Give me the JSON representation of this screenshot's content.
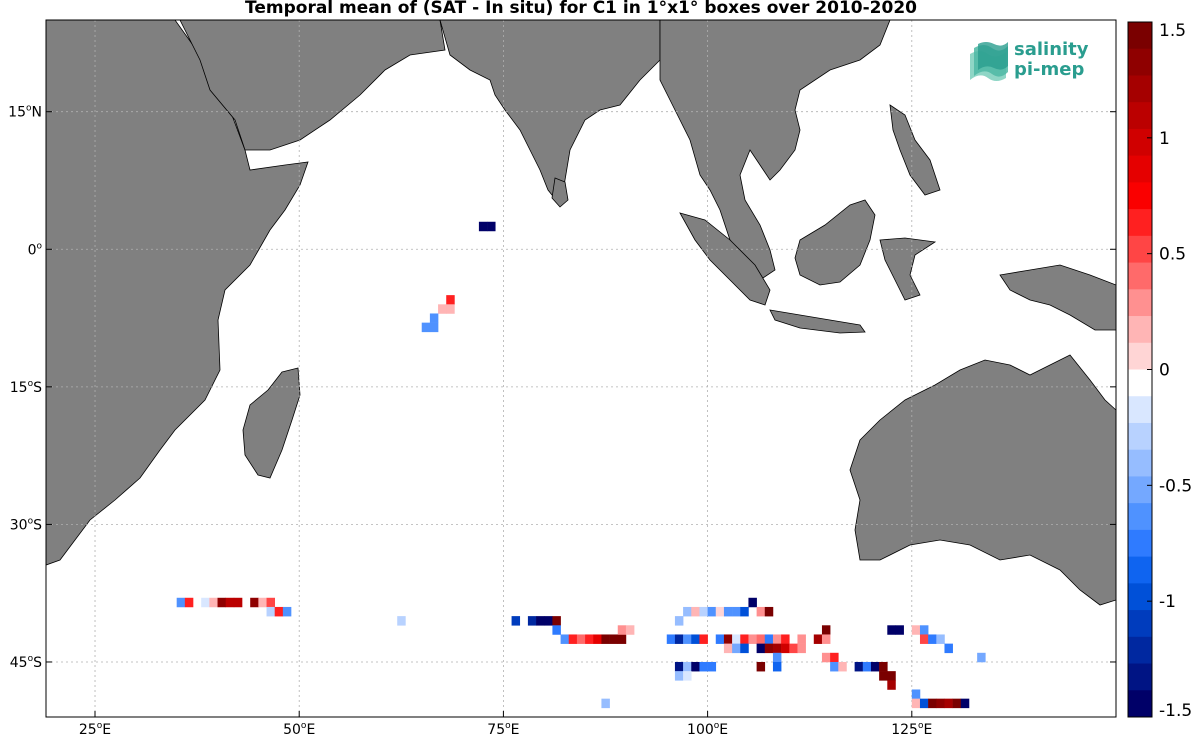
{
  "title": "Temporal mean of (SAT - In situ) for C1 in 1°x1° boxes over 2010-2020",
  "logo": {
    "line1": "salinity",
    "line2": "pi-mep"
  },
  "colors": {
    "land": "#808080",
    "coast": "#000000",
    "grid": "#b0b0b0",
    "ocean": "#ffffff"
  },
  "axes": {
    "lon_range": [
      19,
      150
    ],
    "lat_range": [
      -51,
      25
    ],
    "x_ticks": [
      {
        "lon": 25,
        "deg": "25",
        "hemi": "E"
      },
      {
        "lon": 50,
        "deg": "50",
        "hemi": "E"
      },
      {
        "lon": 75,
        "deg": "75",
        "hemi": "E"
      },
      {
        "lon": 100,
        "deg": "100",
        "hemi": "E"
      },
      {
        "lon": 125,
        "deg": "125",
        "hemi": "E"
      }
    ],
    "y_ticks": [
      {
        "lat": 15,
        "deg": "15",
        "hemi": "N"
      },
      {
        "lat": 0,
        "deg": "0",
        "hemi": ""
      },
      {
        "lat": -15,
        "deg": "15",
        "hemi": "S"
      },
      {
        "lat": -30,
        "deg": "30",
        "hemi": "S"
      },
      {
        "lat": -45,
        "deg": "45",
        "hemi": "S"
      }
    ]
  },
  "colorbar": {
    "range": [
      -1.5,
      1.5
    ],
    "ticks": [
      {
        "value": 1.5,
        "label": "1.5"
      },
      {
        "value": 1,
        "label": "1"
      },
      {
        "value": 0.5,
        "label": "0.5"
      },
      {
        "value": 0,
        "label": "0"
      },
      {
        "value": -0.5,
        "label": "-0.5"
      },
      {
        "value": -1,
        "label": "-1"
      },
      {
        "value": -1.5,
        "label": "-1.5"
      }
    ],
    "colors_top_to_bottom": [
      "#7a0000",
      "#8f0000",
      "#a50000",
      "#bb0000",
      "#d00000",
      "#e50000",
      "#fa0000",
      "#ff2020",
      "#ff4545",
      "#ff6a6a",
      "#ff9090",
      "#ffb5b5",
      "#ffd5d5",
      "#ffffff",
      "#d9e7ff",
      "#b8d2ff",
      "#96bdff",
      "#74a8ff",
      "#4f92ff",
      "#2f7bff",
      "#0f64f0",
      "#0050d8",
      "#003cbd",
      "#0028a0",
      "#001484",
      "#000068"
    ]
  },
  "boxes": [
    {
      "lon": 72.5,
      "lat": 2.5,
      "v": -1.5
    },
    {
      "lon": 73.5,
      "lat": 2.5,
      "v": -1.5
    },
    {
      "lon": 68.5,
      "lat": -5.5,
      "v": 0.6
    },
    {
      "lon": 67.5,
      "lat": -6.5,
      "v": 0.2
    },
    {
      "lon": 68.5,
      "lat": -6.5,
      "v": 0.2
    },
    {
      "lon": 66.5,
      "lat": -7.5,
      "v": -0.6
    },
    {
      "lon": 65.5,
      "lat": -8.5,
      "v": -0.6
    },
    {
      "lon": 66.5,
      "lat": -8.5,
      "v": -0.6
    },
    {
      "lon": 35.5,
      "lat": -38.5,
      "v": -0.6
    },
    {
      "lon": 36.5,
      "lat": -38.5,
      "v": 0.6
    },
    {
      "lon": 38.5,
      "lat": -38.5,
      "v": -0.2
    },
    {
      "lon": 39.5,
      "lat": -38.5,
      "v": 0.2
    },
    {
      "lon": 40.5,
      "lat": -38.5,
      "v": 1.3
    },
    {
      "lon": 41.5,
      "lat": -38.5,
      "v": 1.1
    },
    {
      "lon": 42.5,
      "lat": -38.5,
      "v": 1.1
    },
    {
      "lon": 44.5,
      "lat": -38.5,
      "v": 1.3
    },
    {
      "lon": 45.5,
      "lat": -38.5,
      "v": 0.2
    },
    {
      "lon": 46.5,
      "lat": -38.5,
      "v": 0.5
    },
    {
      "lon": 46.5,
      "lat": -39.5,
      "v": -0.3
    },
    {
      "lon": 47.5,
      "lat": -39.5,
      "v": 0.6
    },
    {
      "lon": 48.5,
      "lat": -39.5,
      "v": -0.6
    },
    {
      "lon": 62.5,
      "lat": -40.5,
      "v": -0.3
    },
    {
      "lon": 76.5,
      "lat": -40.5,
      "v": -1.1
    },
    {
      "lon": 78.5,
      "lat": -40.5,
      "v": -1.2
    },
    {
      "lon": 79.5,
      "lat": -40.5,
      "v": -1.4
    },
    {
      "lon": 80.5,
      "lat": -40.5,
      "v": -1.5
    },
    {
      "lon": 81.5,
      "lat": -40.5,
      "v": 1.5
    },
    {
      "lon": 81.5,
      "lat": -41.5,
      "v": -0.8
    },
    {
      "lon": 82.5,
      "lat": -42.5,
      "v": -0.6
    },
    {
      "lon": 83.5,
      "lat": -42.5,
      "v": 0.6
    },
    {
      "lon": 84.5,
      "lat": -42.5,
      "v": 0.4
    },
    {
      "lon": 85.5,
      "lat": -42.5,
      "v": 0.6
    },
    {
      "lon": 86.5,
      "lat": -42.5,
      "v": 0.9
    },
    {
      "lon": 87.5,
      "lat": -42.5,
      "v": 1.5
    },
    {
      "lon": 88.5,
      "lat": -42.5,
      "v": 1.4
    },
    {
      "lon": 89.5,
      "lat": -42.5,
      "v": 1.5
    },
    {
      "lon": 89.5,
      "lat": -41.5,
      "v": 0.3
    },
    {
      "lon": 90.5,
      "lat": -41.5,
      "v": 0.2
    },
    {
      "lon": 95.5,
      "lat": -42.5,
      "v": -0.8
    },
    {
      "lon": 96.5,
      "lat": -42.5,
      "v": -1.2
    },
    {
      "lon": 97.5,
      "lat": -42.5,
      "v": -0.6
    },
    {
      "lon": 98.5,
      "lat": -42.5,
      "v": -1.0
    },
    {
      "lon": 99.5,
      "lat": -42.5,
      "v": 0.6
    },
    {
      "lon": 101.5,
      "lat": -42.5,
      "v": -0.8
    },
    {
      "lon": 102.5,
      "lat": -42.5,
      "v": 1.3
    },
    {
      "lon": 103.5,
      "lat": -42.5,
      "v": -0.2
    },
    {
      "lon": 104.5,
      "lat": -42.5,
      "v": 0.6
    },
    {
      "lon": 105.5,
      "lat": -42.5,
      "v": 0.3
    },
    {
      "lon": 106.5,
      "lat": -42.5,
      "v": 0.4
    },
    {
      "lon": 107.5,
      "lat": -42.5,
      "v": -0.7
    },
    {
      "lon": 108.5,
      "lat": -42.5,
      "v": 0.3
    },
    {
      "lon": 109.5,
      "lat": -42.5,
      "v": 0.6
    },
    {
      "lon": 111.5,
      "lat": -42.5,
      "v": 0.3
    },
    {
      "lon": 113.5,
      "lat": -42.5,
      "v": 1.2
    },
    {
      "lon": 114.5,
      "lat": -41.5,
      "v": 1.5
    },
    {
      "lon": 114.5,
      "lat": -42.5,
      "v": 0.3
    },
    {
      "lon": 97.5,
      "lat": -39.5,
      "v": -0.4
    },
    {
      "lon": 98.5,
      "lat": -39.5,
      "v": 0.2
    },
    {
      "lon": 99.5,
      "lat": -39.5,
      "v": -0.3
    },
    {
      "lon": 100.5,
      "lat": -39.5,
      "v": -0.6
    },
    {
      "lon": 101.5,
      "lat": -39.5,
      "v": 0.1
    },
    {
      "lon": 102.5,
      "lat": -39.5,
      "v": -0.6
    },
    {
      "lon": 103.5,
      "lat": -39.5,
      "v": -0.6
    },
    {
      "lon": 104.5,
      "lat": -39.5,
      "v": -1.0
    },
    {
      "lon": 105.5,
      "lat": -38.5,
      "v": -1.4
    },
    {
      "lon": 106.5,
      "lat": -39.5,
      "v": 0.3
    },
    {
      "lon": 107.5,
      "lat": -39.5,
      "v": 1.5
    },
    {
      "lon": 96.5,
      "lat": -40.5,
      "v": -0.4
    },
    {
      "lon": 102.5,
      "lat": -43.5,
      "v": 0.2
    },
    {
      "lon": 103.5,
      "lat": -43.5,
      "v": -0.5
    },
    {
      "lon": 104.5,
      "lat": -43.5,
      "v": -1.0
    },
    {
      "lon": 106.5,
      "lat": -43.5,
      "v": -1.4
    },
    {
      "lon": 107.5,
      "lat": -43.5,
      "v": 1.3
    },
    {
      "lon": 108.5,
      "lat": -43.5,
      "v": 1.2
    },
    {
      "lon": 109.5,
      "lat": -43.5,
      "v": 1.0
    },
    {
      "lon": 110.5,
      "lat": -43.5,
      "v": 0.5
    },
    {
      "lon": 111.5,
      "lat": -43.5,
      "v": 0.3
    },
    {
      "lon": 108.5,
      "lat": -44.5,
      "v": -0.6
    },
    {
      "lon": 108.5,
      "lat": -45.5,
      "v": -0.9
    },
    {
      "lon": 106.5,
      "lat": -45.5,
      "v": 1.5
    },
    {
      "lon": 96.5,
      "lat": -45.5,
      "v": -1.3
    },
    {
      "lon": 97.5,
      "lat": -45.5,
      "v": -0.4
    },
    {
      "lon": 98.5,
      "lat": -45.5,
      "v": -1.4
    },
    {
      "lon": 99.5,
      "lat": -45.5,
      "v": -0.8
    },
    {
      "lon": 100.5,
      "lat": -45.5,
      "v": -0.8
    },
    {
      "lon": 96.5,
      "lat": -46.5,
      "v": -0.4
    },
    {
      "lon": 97.5,
      "lat": -46.5,
      "v": -0.2
    },
    {
      "lon": 114.5,
      "lat": -44.5,
      "v": 0.3
    },
    {
      "lon": 115.5,
      "lat": -44.5,
      "v": 0.6
    },
    {
      "lon": 115.5,
      "lat": -45.5,
      "v": -0.6
    },
    {
      "lon": 116.5,
      "lat": -45.5,
      "v": 0.2
    },
    {
      "lon": 118.5,
      "lat": -45.5,
      "v": -1.3
    },
    {
      "lon": 119.5,
      "lat": -45.5,
      "v": -0.7
    },
    {
      "lon": 120.5,
      "lat": -45.5,
      "v": -1.5
    },
    {
      "lon": 121.5,
      "lat": -45.5,
      "v": 1.5
    },
    {
      "lon": 121.5,
      "lat": -46.5,
      "v": 1.5
    },
    {
      "lon": 122.5,
      "lat": -46.5,
      "v": 1.4
    },
    {
      "lon": 122.5,
      "lat": -47.5,
      "v": 1.2
    },
    {
      "lon": 122.5,
      "lat": -41.5,
      "v": -1.4
    },
    {
      "lon": 123.5,
      "lat": -41.5,
      "v": -1.5
    },
    {
      "lon": 125.5,
      "lat": -41.5,
      "v": 0.2
    },
    {
      "lon": 126.5,
      "lat": -41.5,
      "v": -0.6
    },
    {
      "lon": 126.5,
      "lat": -42.5,
      "v": 0.5
    },
    {
      "lon": 127.5,
      "lat": -42.5,
      "v": -0.7
    },
    {
      "lon": 128.5,
      "lat": -42.5,
      "v": -0.4
    },
    {
      "lon": 129.5,
      "lat": -43.5,
      "v": -0.7
    },
    {
      "lon": 133.5,
      "lat": -44.5,
      "v": -0.5
    },
    {
      "lon": 125.5,
      "lat": -48.5,
      "v": -0.6
    },
    {
      "lon": 125.5,
      "lat": -49.5,
      "v": 0.2
    },
    {
      "lon": 126.5,
      "lat": -49.5,
      "v": -1.0
    },
    {
      "lon": 127.5,
      "lat": -49.5,
      "v": 1.5
    },
    {
      "lon": 128.5,
      "lat": -49.5,
      "v": 1.3
    },
    {
      "lon": 129.5,
      "lat": -49.5,
      "v": 1.2
    },
    {
      "lon": 130.5,
      "lat": -49.5,
      "v": 1.5
    },
    {
      "lon": 131.5,
      "lat": -49.5,
      "v": -1.4
    },
    {
      "lon": 87.5,
      "lat": -49.5,
      "v": -0.4
    }
  ]
}
